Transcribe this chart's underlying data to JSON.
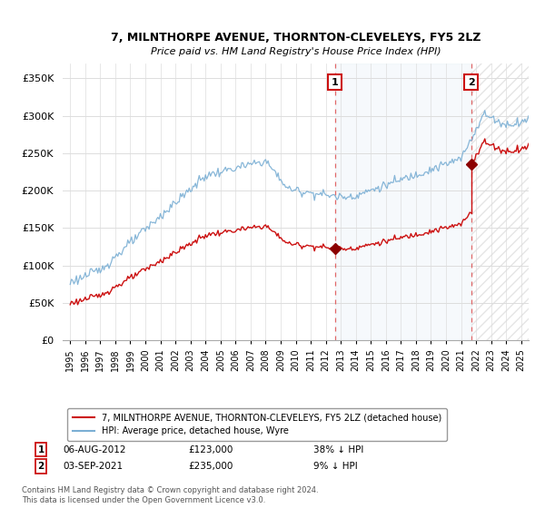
{
  "title": "7, MILNTHORPE AVENUE, THORNTON-CLEVELEYS, FY5 2LZ",
  "subtitle": "Price paid vs. HM Land Registry's House Price Index (HPI)",
  "hpi_color": "#7bafd4",
  "price_color": "#cc1111",
  "sale1_year": 2012.6,
  "sale1_price": 123000,
  "sale2_year": 2021.67,
  "sale2_price": 235000,
  "annotation1": {
    "label": "1",
    "date": "06-AUG-2012",
    "price": "£123,000",
    "pct": "38% ↓ HPI"
  },
  "annotation2": {
    "label": "2",
    "date": "03-SEP-2021",
    "price": "£235,000",
    "pct": "9% ↓ HPI"
  },
  "legend1": "7, MILNTHORPE AVENUE, THORNTON-CLEVELEYS, FY5 2LZ (detached house)",
  "legend2": "HPI: Average price, detached house, Wyre",
  "footnote": "Contains HM Land Registry data © Crown copyright and database right 2024.\nThis data is licensed under the Open Government Licence v3.0.",
  "ylim": [
    0,
    370000
  ],
  "yticks": [
    0,
    50000,
    100000,
    150000,
    200000,
    250000,
    300000,
    350000
  ],
  "background_color": "#ffffff",
  "fill_color": "#dce9f5",
  "hatch_color": "#cccccc"
}
